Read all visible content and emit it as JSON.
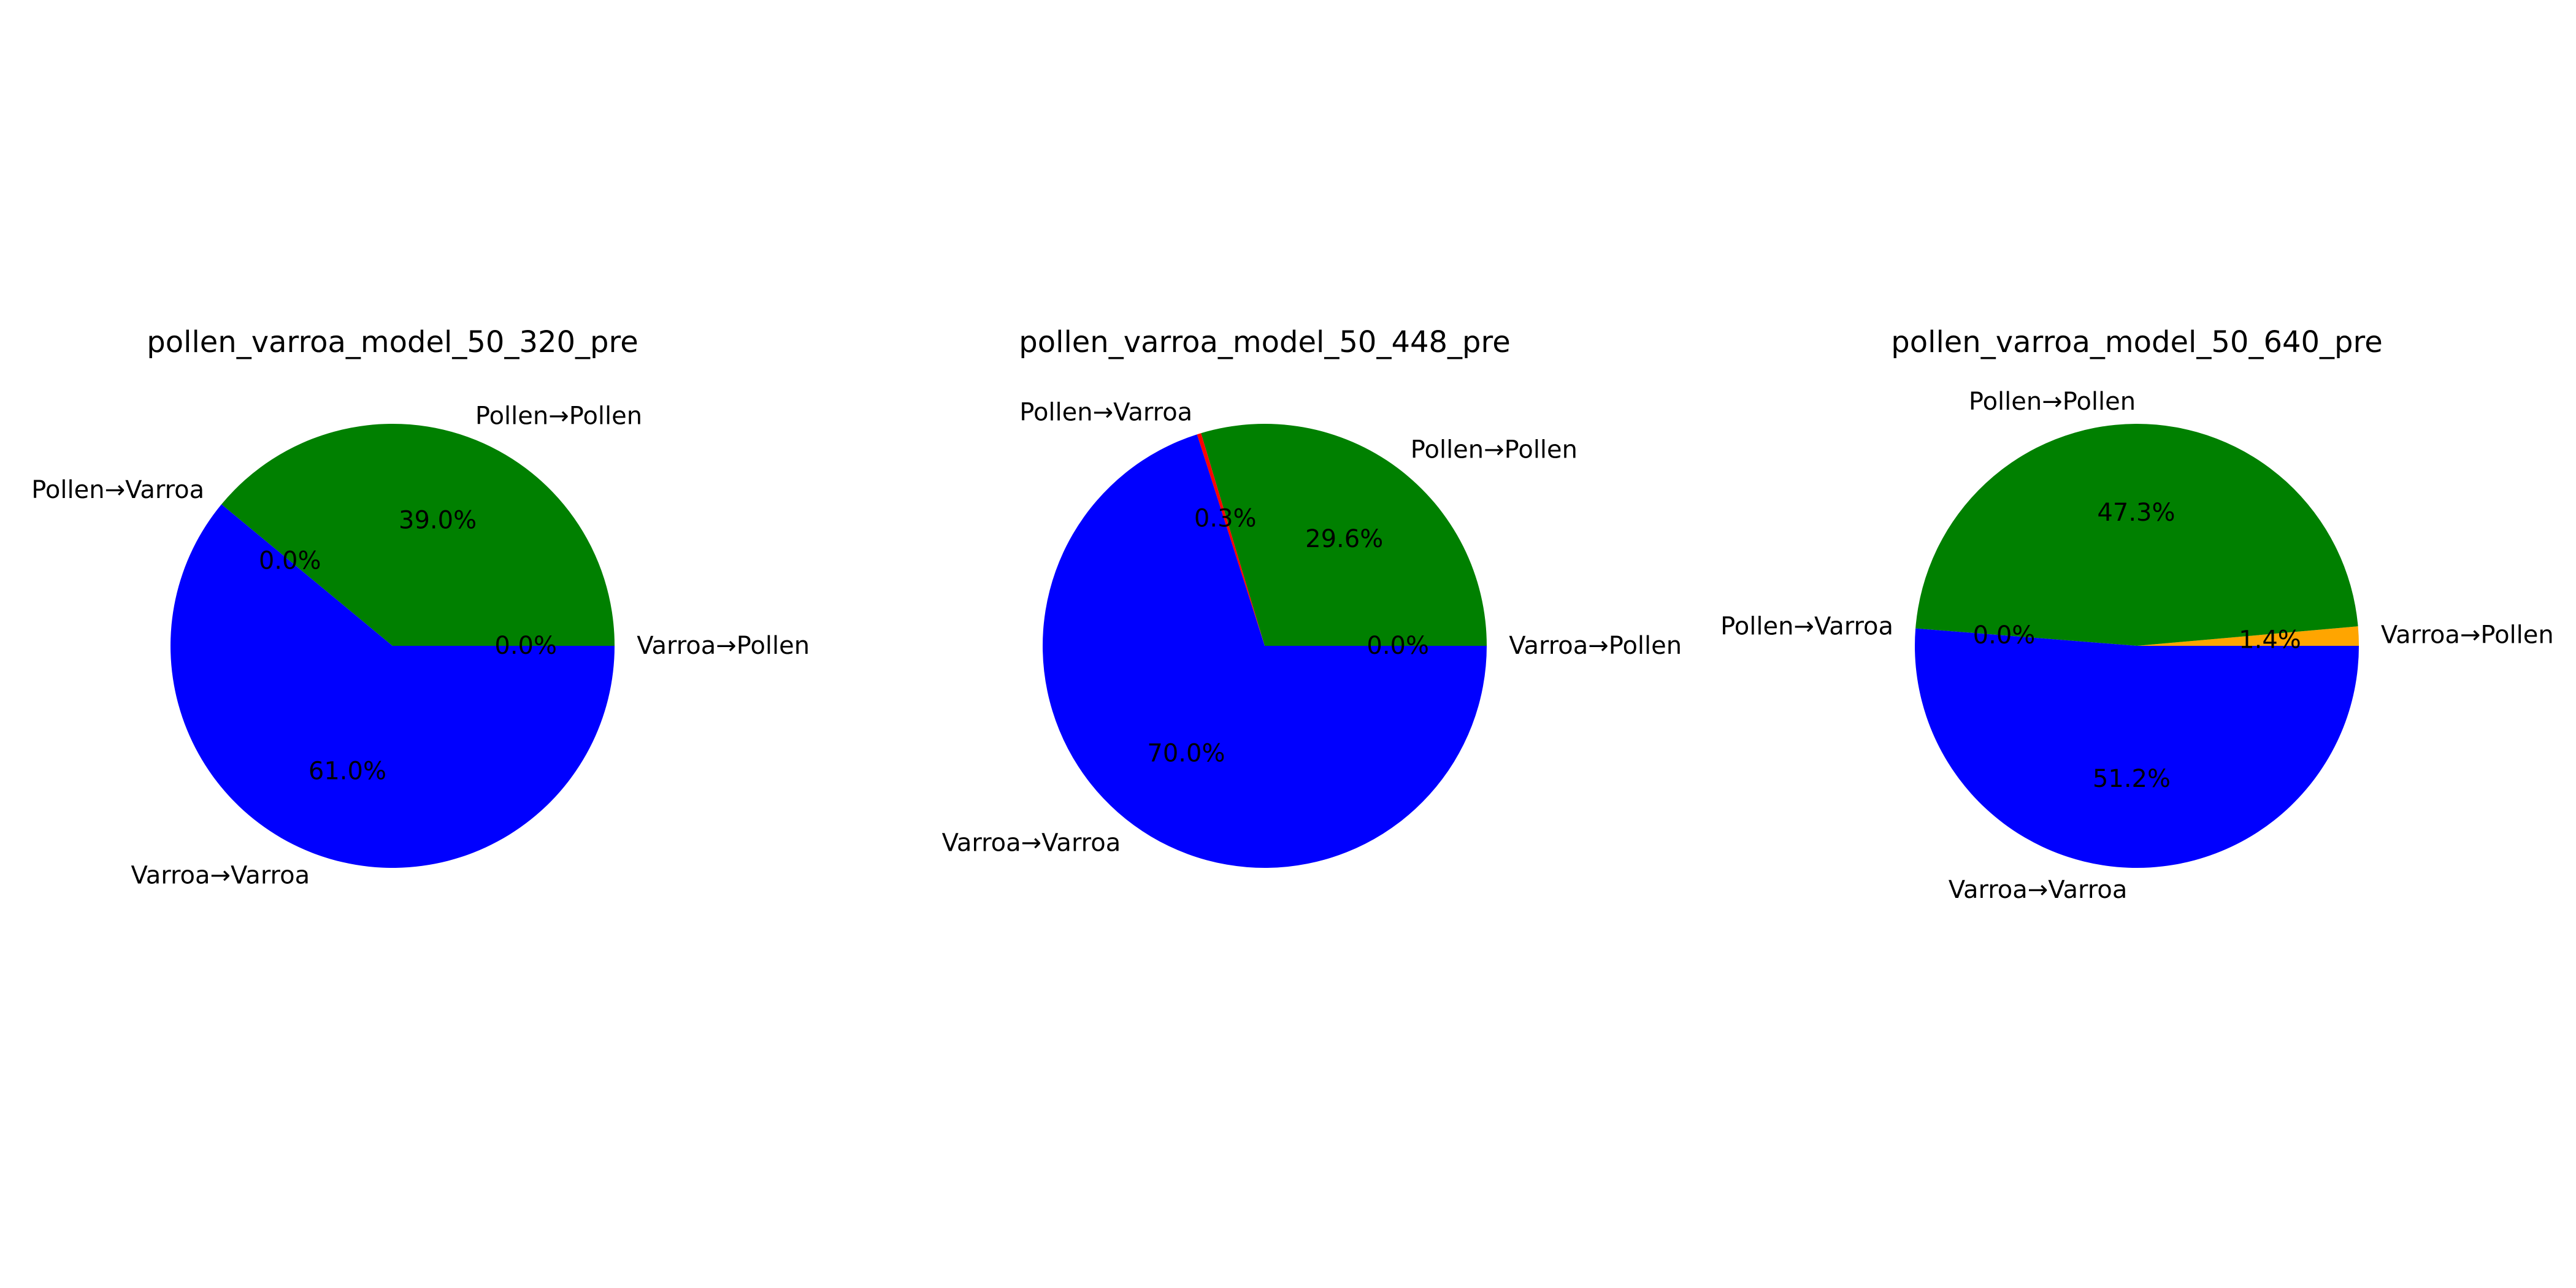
{
  "figure": {
    "background": "#ffffff"
  },
  "chart_data": [
    {
      "type": "pie",
      "title": "pollen_varroa_model_50_320_pre",
      "start_angle_deg": 0,
      "direction": "counterclockwise",
      "slices": [
        {
          "label": "Varroa→Pollen",
          "value": 0.0,
          "pct_text": "0.0%",
          "color": "#ffa500"
        },
        {
          "label": "Pollen→Pollen",
          "value": 39.0,
          "pct_text": "39.0%",
          "color": "#008000"
        },
        {
          "label": "Pollen→Varroa",
          "value": 0.0,
          "pct_text": "0.0%",
          "color": "#ff0000"
        },
        {
          "label": "Varroa→Varroa",
          "value": 61.0,
          "pct_text": "61.0%",
          "color": "#0000ff"
        }
      ]
    },
    {
      "type": "pie",
      "title": "pollen_varroa_model_50_448_pre",
      "start_angle_deg": 0,
      "direction": "counterclockwise",
      "slices": [
        {
          "label": "Varroa→Pollen",
          "value": 0.0,
          "pct_text": "0.0%",
          "color": "#ffa500"
        },
        {
          "label": "Pollen→Pollen",
          "value": 29.6,
          "pct_text": "29.6%",
          "color": "#008000"
        },
        {
          "label": "Pollen→Varroa",
          "value": 0.3,
          "pct_text": "0.3%",
          "color": "#ff0000"
        },
        {
          "label": "Varroa→Varroa",
          "value": 70.0,
          "pct_text": "70.0%",
          "color": "#0000ff"
        }
      ]
    },
    {
      "type": "pie",
      "title": "pollen_varroa_model_50_640_pre",
      "start_angle_deg": 0,
      "direction": "counterclockwise",
      "slices": [
        {
          "label": "Varroa→Pollen",
          "value": 1.4,
          "pct_text": "1.4%",
          "color": "#ffa500"
        },
        {
          "label": "Pollen→Pollen",
          "value": 47.3,
          "pct_text": "47.3%",
          "color": "#008000"
        },
        {
          "label": "Pollen→Varroa",
          "value": 0.0,
          "pct_text": "0.0%",
          "color": "#ff0000"
        },
        {
          "label": "Varroa→Varroa",
          "value": 51.2,
          "pct_text": "51.2%",
          "color": "#0000ff"
        }
      ]
    }
  ]
}
